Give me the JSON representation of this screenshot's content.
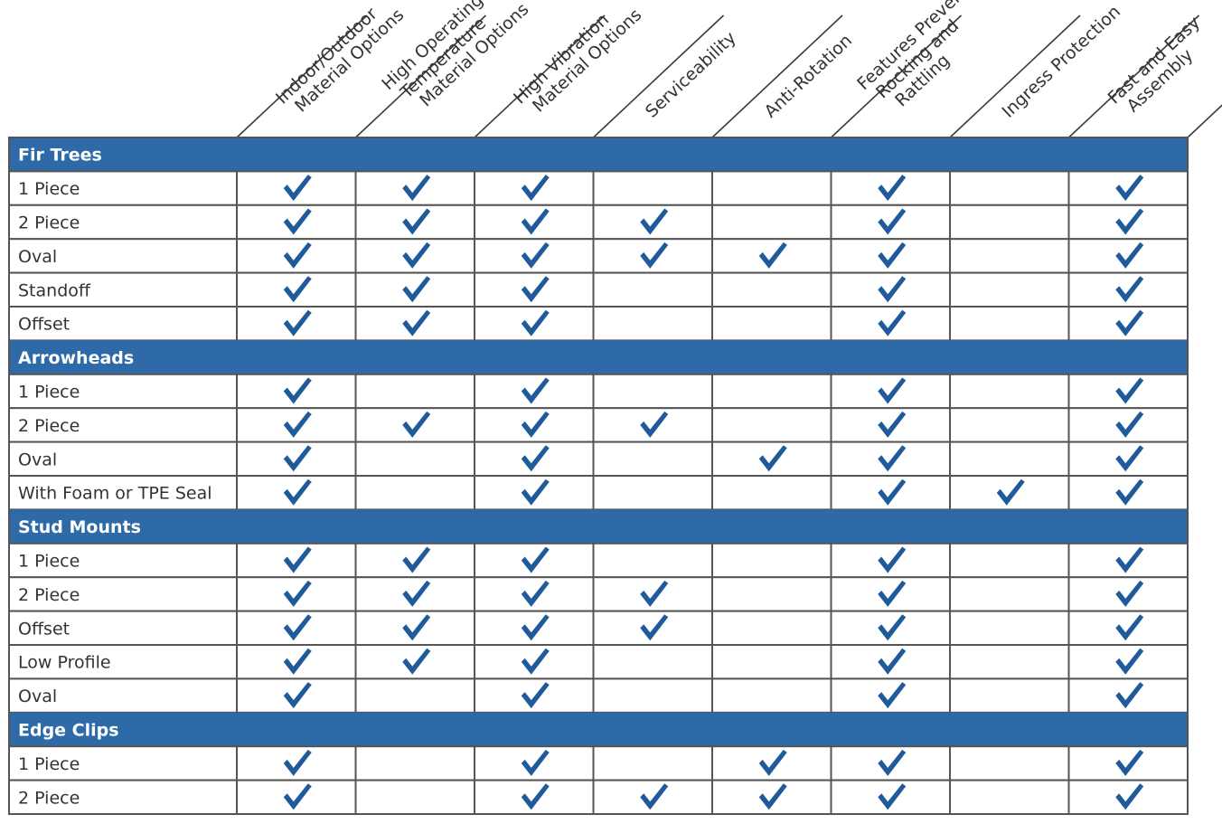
{
  "columns": [
    {
      "id": "indoor-outdoor",
      "lines": [
        "Indoor/Outdoor",
        "Material Options"
      ]
    },
    {
      "id": "high-operating-temperature",
      "lines": [
        "High Operating",
        "Temperature",
        "Material Options"
      ]
    },
    {
      "id": "high-vibration",
      "lines": [
        "High Vibration",
        "Material Options"
      ]
    },
    {
      "id": "serviceability",
      "lines": [
        "Serviceability"
      ]
    },
    {
      "id": "anti-rotation",
      "lines": [
        "Anti-Rotation"
      ]
    },
    {
      "id": "features-preventing-rocking",
      "lines": [
        "Features Preventing",
        "Rocking and",
        "Rattling"
      ]
    },
    {
      "id": "ingress-protection",
      "lines": [
        "Ingress Protection"
      ]
    },
    {
      "id": "fast-easy-assembly",
      "lines": [
        "Fast and Easy",
        "Assembly"
      ]
    }
  ],
  "groups": [
    {
      "id": "fir-trees",
      "title": "Fir Trees",
      "rows": [
        {
          "label": "1 Piece",
          "checks": [
            1,
            1,
            1,
            0,
            0,
            1,
            0,
            1
          ]
        },
        {
          "label": "2 Piece",
          "checks": [
            1,
            1,
            1,
            1,
            0,
            1,
            0,
            1
          ]
        },
        {
          "label": "Oval",
          "checks": [
            1,
            1,
            1,
            1,
            1,
            1,
            0,
            1
          ]
        },
        {
          "label": "Standoff",
          "checks": [
            1,
            1,
            1,
            0,
            0,
            1,
            0,
            1
          ]
        },
        {
          "label": "Offset",
          "checks": [
            1,
            1,
            1,
            0,
            0,
            1,
            0,
            1
          ]
        }
      ]
    },
    {
      "id": "arrowheads",
      "title": "Arrowheads",
      "rows": [
        {
          "label": "1 Piece",
          "checks": [
            1,
            0,
            1,
            0,
            0,
            1,
            0,
            1
          ]
        },
        {
          "label": "2 Piece",
          "checks": [
            1,
            1,
            1,
            1,
            0,
            1,
            0,
            1
          ]
        },
        {
          "label": "Oval",
          "checks": [
            1,
            0,
            1,
            0,
            1,
            1,
            0,
            1
          ]
        },
        {
          "label": "With Foam or TPE Seal",
          "checks": [
            1,
            0,
            1,
            0,
            0,
            1,
            1,
            1
          ]
        }
      ]
    },
    {
      "id": "stud-mounts",
      "title": "Stud Mounts",
      "rows": [
        {
          "label": "1 Piece",
          "checks": [
            1,
            1,
            1,
            0,
            0,
            1,
            0,
            1
          ]
        },
        {
          "label": "2 Piece",
          "checks": [
            1,
            1,
            1,
            1,
            0,
            1,
            0,
            1
          ]
        },
        {
          "label": "Offset",
          "checks": [
            1,
            1,
            1,
            1,
            0,
            1,
            0,
            1
          ]
        },
        {
          "label": "Low Profile",
          "checks": [
            1,
            1,
            1,
            0,
            0,
            1,
            0,
            1
          ]
        },
        {
          "label": "Oval",
          "checks": [
            1,
            0,
            1,
            0,
            0,
            1,
            0,
            1
          ]
        }
      ]
    },
    {
      "id": "edge-clips",
      "title": "Edge Clips",
      "rows": [
        {
          "label": "1 Piece",
          "checks": [
            1,
            0,
            1,
            0,
            1,
            1,
            0,
            1
          ]
        },
        {
          "label": "2 Piece",
          "checks": [
            1,
            0,
            1,
            1,
            1,
            1,
            0,
            1
          ]
        }
      ]
    }
  ],
  "colors": {
    "group_header": "#2e6aa8",
    "check": "#1f5a9a",
    "grid": "#555555",
    "header_text": "#333333"
  },
  "icons": {
    "check": "check-mark-icon"
  }
}
